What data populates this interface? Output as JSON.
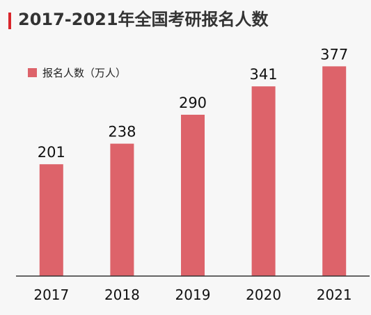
{
  "title": "2017-2021年全国考研报名人数",
  "colors": {
    "bar": "#dd636a",
    "accent": "#d9262c",
    "background": "#f7f7f7",
    "axis": "#333333"
  },
  "chart_data": {
    "type": "bar",
    "title": "2017-2021年全国考研报名人数",
    "categories": [
      "2017",
      "2018",
      "2019",
      "2020",
      "2021"
    ],
    "series": [
      {
        "name": "报名人数（万人）",
        "values": [
          201,
          238,
          290,
          341,
          377
        ]
      }
    ],
    "data_labels": [
      "201",
      "238",
      "290",
      "341",
      "377"
    ],
    "xlabel": "",
    "ylabel": "",
    "ylim": [
      0,
      400
    ],
    "grid": false,
    "legend_position": "top-left"
  }
}
